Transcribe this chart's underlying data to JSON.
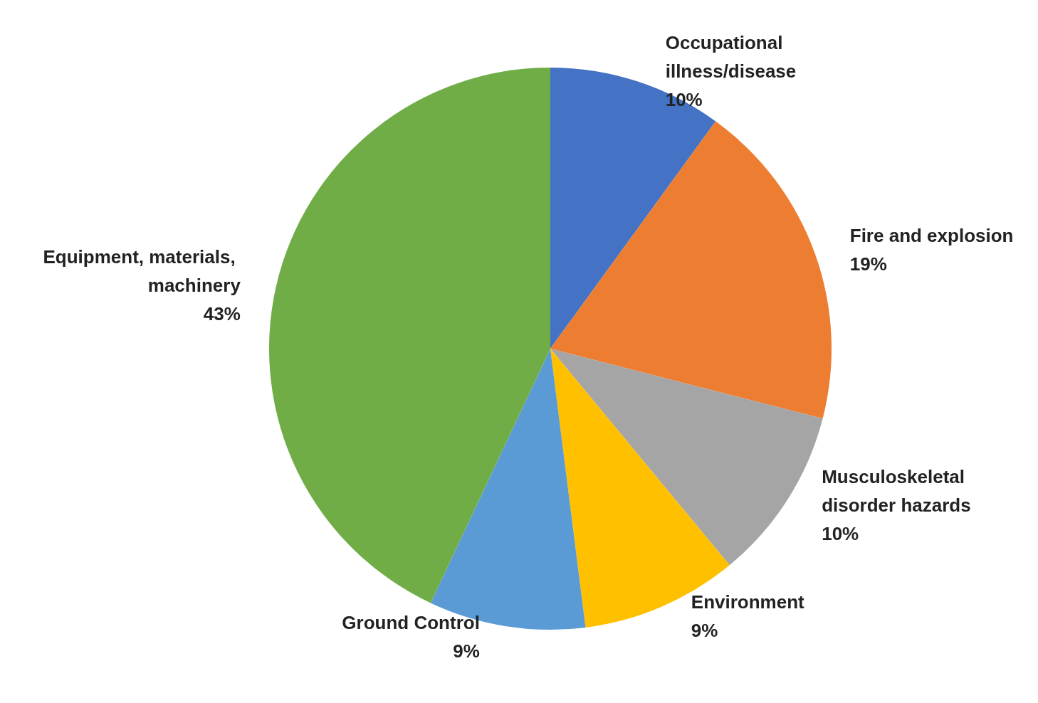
{
  "chart_data": {
    "type": "pie",
    "categories": [
      "Occupational illness/disease",
      "Fire and explosion",
      "Musculoskeletal disorder hazards",
      "Environment",
      "Ground Control",
      "Equipment, materials, machinery"
    ],
    "values": [
      10,
      19,
      10,
      9,
      9,
      43
    ],
    "value_labels": [
      "10%",
      "19%",
      "10%",
      "9%",
      "9%",
      "43%"
    ],
    "colors": [
      "#4472c4",
      "#ed7d31",
      "#a5a5a5",
      "#ffc000",
      "#5b9bd5",
      "#70ad47"
    ],
    "legend": false
  }
}
